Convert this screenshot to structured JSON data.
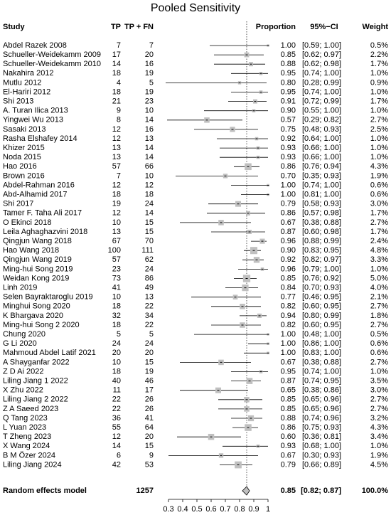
{
  "chart_data": {
    "type": "forest",
    "title": "Pooled Sensitivity",
    "columns": {
      "study": "Study",
      "tp": "TP",
      "total": "TP + FN",
      "proportion": "Proportion",
      "ci": "95%−CI",
      "weight": "Weight"
    },
    "studies": [
      "Abdel Razek 2008",
      "Schueller-Weidekamm 2009",
      "Schueller-Weidekamm 2010",
      "Nakahira 2012",
      "Mutlu 2012",
      "El-Hariri 2012",
      "Shi 2013",
      "A. Turan Ilica 2013",
      "Yingwei Wu 2013",
      "Sasaki 2013",
      "Rasha Elshafey 2014",
      "Khizer 2015",
      "Noda 2015",
      "Hao 2016",
      "Brown 2016",
      "Abdel-Rahman 2016",
      "Abd-Alhamid 2017",
      "Shi 2017",
      "Tamer F. Taha Ali 2017",
      "O Ekinci 2018",
      "Leila Aghaghazvini 2018",
      "Qingjun Wang 2018",
      "Hao Wang 2018",
      "Qingjun Wang 2019",
      "Ming-hui Song 2019",
      "Weidan Kong 2019",
      "Linh 2019",
      "Selen Bayraktaroglu 2019",
      "Minghui Song 2020",
      "K Bhargava 2020",
      "Ming-hui Song 2 2020",
      "Chung 2020",
      "G Li 2020",
      "Mahmoud Abdel Latif 2021",
      "A Shayganfar 2022",
      "Z D Ai 2022",
      "Liling Jiang 1 2022",
      "X Zhu 2022",
      "Liling Jiang 2 2022",
      "Z A Saeed 2023",
      "Q Tang 2023",
      "L Yuan 2023",
      "T Zheng 2023",
      "X Wang 2024",
      "B M Özer 2024",
      "Liling Jiang 2024"
    ],
    "tp": [
      7,
      17,
      14,
      18,
      4,
      18,
      21,
      9,
      8,
      12,
      12,
      13,
      13,
      57,
      7,
      12,
      18,
      19,
      12,
      10,
      13,
      67,
      100,
      57,
      23,
      73,
      41,
      10,
      18,
      32,
      18,
      5,
      24,
      20,
      10,
      18,
      40,
      11,
      22,
      22,
      36,
      55,
      12,
      14,
      6,
      42
    ],
    "total": [
      7,
      20,
      16,
      19,
      5,
      19,
      23,
      10,
      14,
      16,
      13,
      14,
      14,
      66,
      10,
      12,
      18,
      24,
      14,
      15,
      15,
      70,
      111,
      62,
      24,
      86,
      49,
      13,
      22,
      34,
      22,
      5,
      24,
      20,
      15,
      19,
      46,
      17,
      26,
      26,
      41,
      64,
      20,
      15,
      9,
      53
    ],
    "values": [
      1,
      0.85,
      0.88,
      0.95,
      0.8,
      0.95,
      0.91,
      0.9,
      0.57,
      0.75,
      0.92,
      0.93,
      0.93,
      0.86,
      0.7,
      1,
      1,
      0.79,
      0.86,
      0.67,
      0.87,
      0.96,
      0.9,
      0.92,
      0.96,
      0.85,
      0.84,
      0.77,
      0.82,
      0.94,
      0.82,
      1,
      1,
      1,
      0.67,
      0.95,
      0.87,
      0.65,
      0.85,
      0.85,
      0.88,
      0.86,
      0.6,
      0.93,
      0.67,
      0.79
    ],
    "value_labels": [
      "1.00",
      "0.85",
      "0.88",
      "0.95",
      "0.80",
      "0.95",
      "0.91",
      "0.90",
      "0.57",
      "0.75",
      "0.92",
      "0.93",
      "0.93",
      "0.86",
      "0.70",
      "1.00",
      "1.00",
      "0.79",
      "0.86",
      "0.67",
      "0.87",
      "0.96",
      "0.90",
      "0.92",
      "0.96",
      "0.85",
      "0.84",
      "0.77",
      "0.82",
      "0.94",
      "0.82",
      "1.00",
      "1.00",
      "1.00",
      "0.67",
      "0.95",
      "0.87",
      "0.65",
      "0.85",
      "0.85",
      "0.88",
      "0.86",
      "0.60",
      "0.93",
      "0.67",
      "0.79"
    ],
    "ci_lower": [
      0.59,
      0.62,
      0.62,
      0.74,
      0.28,
      0.74,
      0.72,
      0.55,
      0.29,
      0.48,
      0.64,
      0.66,
      0.66,
      0.76,
      0.35,
      0.74,
      0.81,
      0.58,
      0.57,
      0.38,
      0.6,
      0.88,
      0.83,
      0.82,
      0.79,
      0.76,
      0.7,
      0.46,
      0.6,
      0.8,
      0.6,
      0.48,
      0.86,
      0.83,
      0.38,
      0.74,
      0.74,
      0.38,
      0.65,
      0.65,
      0.74,
      0.75,
      0.36,
      0.68,
      0.3,
      0.66
    ],
    "ci_upper": [
      1,
      0.97,
      0.98,
      1,
      0.99,
      1,
      0.99,
      1,
      0.82,
      0.93,
      1,
      1,
      1,
      0.94,
      0.93,
      1,
      1,
      0.93,
      0.98,
      0.88,
      0.98,
      0.99,
      0.95,
      0.97,
      1,
      0.92,
      0.93,
      0.95,
      0.95,
      0.99,
      0.95,
      1,
      1,
      1,
      0.88,
      1,
      0.95,
      0.86,
      0.96,
      0.96,
      0.96,
      0.93,
      0.81,
      1,
      0.93,
      0.89
    ],
    "ci_labels": [
      "[0.59; 1.00]",
      "[0.62; 0.97]",
      "[0.62; 0.98]",
      "[0.74; 1.00]",
      "[0.28; 0.99]",
      "[0.74; 1.00]",
      "[0.72; 0.99]",
      "[0.55; 1.00]",
      "[0.29; 0.82]",
      "[0.48; 0.93]",
      "[0.64; 1.00]",
      "[0.66; 1.00]",
      "[0.66; 1.00]",
      "[0.76; 0.94]",
      "[0.35; 0.93]",
      "[0.74; 1.00]",
      "[0.81; 1.00]",
      "[0.58; 0.93]",
      "[0.57; 0.98]",
      "[0.38; 0.88]",
      "[0.60; 0.98]",
      "[0.88; 0.99]",
      "[0.83; 0.95]",
      "[0.82; 0.97]",
      "[0.79; 1.00]",
      "[0.76; 0.92]",
      "[0.70; 0.93]",
      "[0.46; 0.95]",
      "[0.60; 0.95]",
      "[0.80; 0.99]",
      "[0.60; 0.95]",
      "[0.48; 1.00]",
      "[0.86; 1.00]",
      "[0.83; 1.00]",
      "[0.38; 0.88]",
      "[0.74; 1.00]",
      "[0.74; 0.95]",
      "[0.38; 0.86]",
      "[0.65; 0.96]",
      "[0.65; 0.96]",
      "[0.74; 0.96]",
      "[0.75; 0.93]",
      "[0.36; 0.81]",
      "[0.68; 1.00]",
      "[0.30; 0.93]",
      "[0.66; 0.89]"
    ],
    "weights": [
      0.5,
      2.2,
      1.7,
      1,
      0.9,
      1,
      1.7,
      1,
      2.7,
      2.5,
      1,
      1,
      1,
      4.3,
      1.9,
      0.6,
      0.6,
      3,
      1.7,
      2.7,
      1.7,
      2.4,
      4.8,
      3.3,
      1,
      5,
      4,
      2.1,
      2.7,
      1.8,
      2.7,
      0.5,
      0.6,
      0.6,
      2.7,
      1,
      3.5,
      3,
      2.7,
      2.7,
      3.2,
      4.3,
      3.4,
      1,
      1.9,
      4.5
    ],
    "weight_labels": [
      "0.5%",
      "2.2%",
      "1.7%",
      "1.0%",
      "0.9%",
      "1.0%",
      "1.7%",
      "1.0%",
      "2.7%",
      "2.5%",
      "1.0%",
      "1.0%",
      "1.0%",
      "4.3%",
      "1.9%",
      "0.6%",
      "0.6%",
      "3.0%",
      "1.7%",
      "2.7%",
      "1.7%",
      "2.4%",
      "4.8%",
      "3.3%",
      "1.0%",
      "5.0%",
      "4.0%",
      "2.1%",
      "2.7%",
      "1.8%",
      "2.7%",
      "0.5%",
      "0.6%",
      "0.6%",
      "2.7%",
      "1.0%",
      "3.5%",
      "3.0%",
      "2.7%",
      "2.7%",
      "3.2%",
      "4.3%",
      "3.4%",
      "1.0%",
      "1.9%",
      "4.5%"
    ],
    "summary": {
      "label": "Random effects model",
      "total": 1257,
      "value": 0.85,
      "value_label": "0.85",
      "ci_lower": 0.82,
      "ci_upper": 0.87,
      "ci_label": "[0.82; 0.87]",
      "weight": 100,
      "weight_label": "100.0%"
    },
    "color": "#c0c0c0",
    "xlim": [
      0.3,
      1
    ],
    "xticks": [
      0.3,
      0.4,
      0.5,
      0.6,
      0.7,
      0.8,
      0.9,
      1
    ]
  }
}
